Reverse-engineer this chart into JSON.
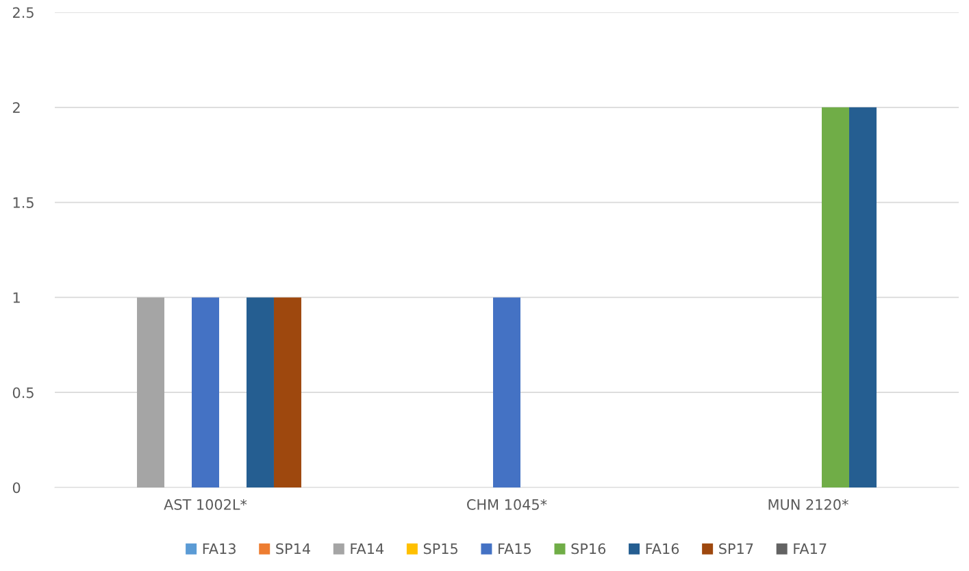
{
  "chart_data": {
    "type": "bar",
    "categories": [
      "AST 1002L*",
      "CHM 1045*",
      "MUN 2120*"
    ],
    "series": [
      {
        "name": "FA13",
        "color": "#5b9bd5",
        "values": [
          null,
          null,
          null
        ]
      },
      {
        "name": "SP14",
        "color": "#ed7d31",
        "values": [
          null,
          null,
          null
        ]
      },
      {
        "name": "FA14",
        "color": "#a5a5a5",
        "values": [
          1,
          null,
          null
        ]
      },
      {
        "name": "SP15",
        "color": "#ffc000",
        "values": [
          null,
          null,
          null
        ]
      },
      {
        "name": "FA15",
        "color": "#4472c4",
        "values": [
          1,
          1,
          null
        ]
      },
      {
        "name": "SP16",
        "color": "#70ad47",
        "values": [
          null,
          null,
          2
        ]
      },
      {
        "name": "FA16",
        "color": "#255e91",
        "values": [
          1,
          null,
          2
        ]
      },
      {
        "name": "SP17",
        "color": "#9e480e",
        "values": [
          1,
          null,
          null
        ]
      },
      {
        "name": "FA17",
        "color": "#636363",
        "values": [
          null,
          null,
          null
        ]
      }
    ],
    "ylim": [
      0,
      2.5
    ],
    "yticks": [
      0,
      0.5,
      1,
      1.5,
      2,
      2.5
    ],
    "grid": "y",
    "legend": "bottom"
  }
}
